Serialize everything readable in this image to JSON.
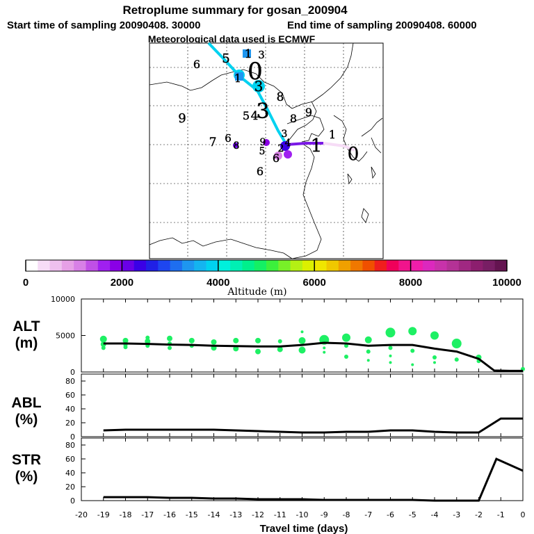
{
  "header": {
    "title": "Retroplume summary for gosan_200904",
    "start_label": "Start time of sampling 20090408. 30000",
    "end_label": "End time of sampling 20090408. 60000",
    "met_label": "Meteorological data used is ECMWF"
  },
  "map": {
    "title": "Retroplume path map",
    "path_points": [
      {
        "label": "0",
        "color": "#f4b8f4"
      },
      {
        "label": "1",
        "color": "#8a00d6"
      },
      {
        "label": "2",
        "color": "#e000e0"
      },
      {
        "label": "3",
        "color": "#00c8e6"
      },
      {
        "label": "4",
        "color": "#00b4e6"
      },
      {
        "label": "5",
        "color": "#1a6ee6"
      },
      {
        "label": "6",
        "color": "#0078e6"
      },
      {
        "label": "7",
        "color": "#1a4ee6"
      },
      {
        "label": "8",
        "color": "#00a0e6"
      },
      {
        "label": "9",
        "color": "#0050e6"
      },
      {
        "label": "10",
        "color": "#0090e6"
      },
      {
        "label": "11",
        "color": "#0070e6"
      }
    ]
  },
  "colorbar": {
    "title": "Altitude (m)",
    "tick_labels": [
      "0",
      "2000",
      "4000",
      "6000",
      "8000",
      "10000"
    ],
    "colors": [
      "#ffffff",
      "#f6dcf6",
      "#eec0ee",
      "#e6a0e6",
      "#d880e6",
      "#c050e6",
      "#a020f0",
      "#8a00e6",
      "#6a00e6",
      "#3a00e6",
      "#2020e6",
      "#1e46f0",
      "#1e6ef0",
      "#1e96f0",
      "#14b4f0",
      "#00d2f0",
      "#00f0dc",
      "#00f0b4",
      "#00f08c",
      "#14f064",
      "#3cf03c",
      "#78f028",
      "#b4f014",
      "#dcf000",
      "#f0e600",
      "#f0c800",
      "#f0a000",
      "#f07800",
      "#f05000",
      "#f01e1e",
      "#f0005a",
      "#f0148c",
      "#f01eaa",
      "#dc28be",
      "#c832aa",
      "#b43296",
      "#a02882",
      "#8c1e6e",
      "#781e64",
      "#641450"
    ]
  },
  "panels": {
    "alt_label_1": "ALT",
    "alt_label_2": "(m)",
    "abl_label_1": "ABL",
    "abl_label_2": "(%)",
    "str_label_1": "STR",
    "str_label_2": "(%)"
  },
  "chart_data": [
    {
      "type": "line",
      "title": "ALT (m)",
      "xlabel": "Travel time (days)",
      "ylabel": "ALT (m)",
      "xlim": [
        -20,
        0
      ],
      "ylim": [
        0,
        10000
      ],
      "y_ticks": [
        0,
        5000,
        10000
      ],
      "x_ticks": [
        -20,
        -19,
        -18,
        -17,
        -16,
        -15,
        -14,
        -13,
        -12,
        -11,
        -10,
        -9,
        -8,
        -7,
        -6,
        -5,
        -4,
        -3,
        -2,
        -1,
        0
      ],
      "series": [
        {
          "name": "mean altitude",
          "x": [
            -19,
            -18,
            -17,
            -16,
            -15,
            -14,
            -13,
            -12,
            -11,
            -10,
            -9,
            -8,
            -7,
            -6,
            -5,
            -4,
            -3,
            -2,
            -1.3,
            -0.6,
            0
          ],
          "values": [
            3900,
            3900,
            3850,
            3750,
            3700,
            3600,
            3550,
            3500,
            3500,
            3700,
            4000,
            3900,
            3600,
            3700,
            3700,
            3200,
            2800,
            1800,
            200,
            150,
            150
          ]
        },
        {
          "name": "cluster altitudes",
          "points": [
            [
              -19,
              4500,
              5
            ],
            [
              -19,
              3800,
              4
            ],
            [
              -19,
              3300,
              3
            ],
            [
              -18,
              4300,
              4
            ],
            [
              -18,
              3700,
              3
            ],
            [
              -18,
              3400,
              3
            ],
            [
              -17,
              4700,
              3
            ],
            [
              -17,
              4200,
              4
            ],
            [
              -17,
              3600,
              3
            ],
            [
              -16,
              4600,
              4
            ],
            [
              -16,
              3900,
              3
            ],
            [
              -16,
              3300,
              3
            ],
            [
              -15,
              4300,
              4
            ],
            [
              -15,
              3600,
              3
            ],
            [
              -14,
              4100,
              4
            ],
            [
              -14,
              3300,
              4
            ],
            [
              -13,
              4300,
              4
            ],
            [
              -13,
              3200,
              4
            ],
            [
              -12,
              4300,
              4
            ],
            [
              -12,
              2800,
              4
            ],
            [
              -11,
              4200,
              3
            ],
            [
              -11,
              3100,
              4
            ],
            [
              -10,
              5500,
              2
            ],
            [
              -10,
              4300,
              5
            ],
            [
              -10,
              3000,
              5
            ],
            [
              -9,
              4400,
              7
            ],
            [
              -9,
              3300,
              2
            ],
            [
              -9,
              2700,
              2
            ],
            [
              -8,
              4700,
              6
            ],
            [
              -8,
              3600,
              3
            ],
            [
              -8,
              2100,
              3
            ],
            [
              -7,
              4400,
              5
            ],
            [
              -7,
              2800,
              3
            ],
            [
              -7,
              1600,
              2
            ],
            [
              -6,
              5400,
              7
            ],
            [
              -6,
              3300,
              3
            ],
            [
              -6,
              2200,
              2
            ],
            [
              -6,
              1300,
              2
            ],
            [
              -5,
              5600,
              6
            ],
            [
              -5,
              2900,
              3
            ],
            [
              -5,
              1000,
              2
            ],
            [
              -4,
              5000,
              6
            ],
            [
              -4,
              2000,
              3
            ],
            [
              -4,
              1300,
              2
            ],
            [
              -3,
              3900,
              7
            ],
            [
              -3,
              1700,
              3
            ],
            [
              -2,
              2000,
              4
            ],
            [
              -2,
              1500,
              3
            ],
            [
              0,
              400,
              3
            ]
          ]
        }
      ]
    },
    {
      "type": "line",
      "title": "ABL (%)",
      "xlabel": "Travel time (days)",
      "ylabel": "ABL (%)",
      "xlim": [
        -20,
        0
      ],
      "ylim": [
        0,
        90
      ],
      "y_ticks": [
        0,
        20,
        40,
        60,
        80
      ],
      "series": [
        {
          "name": "ABL",
          "x": [
            -19,
            -18,
            -17,
            -16,
            -15,
            -14,
            -13,
            -12,
            -11,
            -10,
            -9,
            -8,
            -7,
            -6,
            -5,
            -4,
            -3,
            -2,
            -1,
            0
          ],
          "values": [
            9,
            10,
            10,
            10,
            10,
            10,
            9,
            8,
            7,
            6,
            6,
            7,
            7,
            9,
            9,
            7,
            6,
            6,
            26,
            26
          ]
        }
      ]
    },
    {
      "type": "line",
      "title": "STR (%)",
      "xlabel": "Travel time (days)",
      "ylabel": "STR (%)",
      "xlim": [
        -20,
        0
      ],
      "ylim": [
        0,
        90
      ],
      "y_ticks": [
        0,
        20,
        40,
        60,
        80
      ],
      "series": [
        {
          "name": "STR",
          "x": [
            -19,
            -18,
            -17,
            -16,
            -15,
            -14,
            -13,
            -12,
            -11,
            -10,
            -9,
            -8,
            -7,
            -6,
            -5,
            -4,
            -3,
            -2,
            -1.2,
            0
          ],
          "values": [
            5,
            5,
            5,
            4,
            4,
            3,
            3,
            2,
            2,
            2,
            1,
            1,
            1,
            1,
            1,
            0,
            0,
            0,
            60,
            43
          ]
        }
      ]
    }
  ]
}
